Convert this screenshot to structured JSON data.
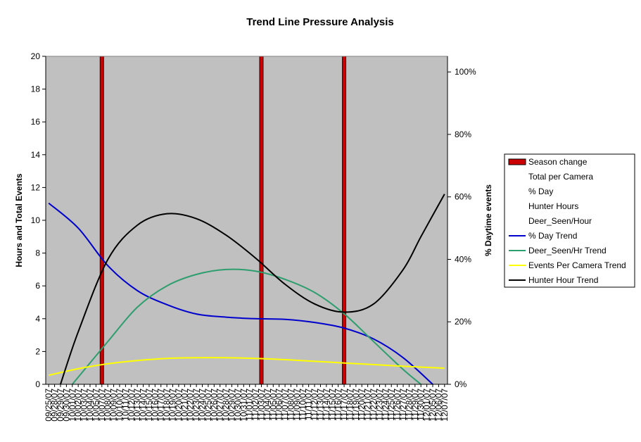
{
  "chart_data": {
    "type": "line",
    "title": "Trend Line Pressure Analysis",
    "ylabel": "Hours and Total Events",
    "y2label": "% Daytime events",
    "ylim": [
      0,
      20
    ],
    "y2lim": [
      0,
      1.05
    ],
    "yticks": [
      "0",
      "2",
      "4",
      "6",
      "8",
      "10",
      "12",
      "14",
      "16",
      "18",
      "20"
    ],
    "y2ticks": [
      "0%",
      "20%",
      "40%",
      "60%",
      "80%",
      "100%"
    ],
    "background": "#c0c0c0",
    "grid": false,
    "legend_position": "right",
    "x": [
      "09/25/07",
      "09/28/07",
      "09/29/07",
      "09/30/07",
      "10/01/07",
      "10/02/07",
      "10/03/07",
      "10/04/07",
      "10/05/07",
      "10/07/07",
      "10/08/07",
      "10/09/07",
      "10/10/07",
      "10/11/07",
      "10/12/07",
      "10/13/07",
      "10/14/07",
      "10/15/07",
      "10/16/07",
      "10/17/07",
      "10/18/07",
      "10/19/07",
      "10/20/07",
      "10/21/07",
      "10/22/07",
      "10/23/07",
      "10/24/07",
      "10/25/07",
      "10/26/07",
      "10/27/07",
      "10/28/07",
      "10/29/07",
      "10/30/07",
      "10/31/07",
      "11/01/07",
      "11/02/07",
      "11/03/07",
      "11/04/07",
      "11/05/07",
      "11/06/07",
      "11/07/07",
      "11/08/07",
      "11/09/07",
      "11/10/07",
      "11/11/07",
      "11/12/07",
      "11/13/07",
      "11/14/07",
      "11/15/07",
      "11/16/07",
      "11/17/07",
      "11/18/07",
      "11/19/07",
      "11/20/07",
      "11/21/07",
      "11/22/07",
      "11/23/07",
      "11/24/07",
      "11/25/07",
      "11/26/07",
      "11/27/07",
      "11/28/07",
      "11/29/07",
      "11/30/07",
      "12/01/07",
      "12/05/07",
      "12/06/07",
      "12/07/07"
    ],
    "season_changes": [
      9.5,
      36.5,
      50.5
    ],
    "series": [
      {
        "name": "Season change",
        "color": "#cc0000",
        "kind": "column"
      },
      {
        "name": "Total per Camera",
        "color": "none",
        "kind": "hidden"
      },
      {
        "name": "% Day",
        "color": "none",
        "kind": "hidden"
      },
      {
        "name": "Hunter Hours",
        "color": "none",
        "kind": "hidden"
      },
      {
        "name": "Deer_Seen/Hour",
        "color": "none",
        "kind": "hidden"
      },
      {
        "name": "% Day Trend",
        "color": "#0000cc",
        "axis": "secondary",
        "points": [
          [
            0,
            0.58
          ],
          [
            5,
            0.5
          ],
          [
            10,
            0.38
          ],
          [
            15,
            0.3
          ],
          [
            20,
            0.255
          ],
          [
            25,
            0.225
          ],
          [
            30,
            0.215
          ],
          [
            35,
            0.21
          ],
          [
            40,
            0.208
          ],
          [
            45,
            0.198
          ],
          [
            50,
            0.18
          ],
          [
            55,
            0.145
          ],
          [
            60,
            0.085
          ],
          [
            65,
            0.0
          ]
        ]
      },
      {
        "name": "Deer_Seen/Hr Trend",
        "color": "#2e9e6e",
        "axis": "primary",
        "points": [
          [
            4,
            0.0
          ],
          [
            10,
            2.6
          ],
          [
            15,
            4.7
          ],
          [
            20,
            6.0
          ],
          [
            25,
            6.7
          ],
          [
            30,
            7.0
          ],
          [
            35,
            6.9
          ],
          [
            40,
            6.4
          ],
          [
            45,
            5.6
          ],
          [
            50,
            4.3
          ],
          [
            55,
            2.6
          ],
          [
            60,
            0.9
          ],
          [
            63,
            0.0
          ]
        ]
      },
      {
        "name": "Events Per Camera Trend",
        "color": "#ffff00",
        "axis": "primary",
        "points": [
          [
            0,
            0.55
          ],
          [
            5,
            0.95
          ],
          [
            10,
            1.25
          ],
          [
            15,
            1.45
          ],
          [
            20,
            1.58
          ],
          [
            25,
            1.62
          ],
          [
            30,
            1.62
          ],
          [
            35,
            1.58
          ],
          [
            40,
            1.5
          ],
          [
            45,
            1.4
          ],
          [
            50,
            1.3
          ],
          [
            55,
            1.2
          ],
          [
            60,
            1.1
          ],
          [
            67,
            0.98
          ]
        ]
      },
      {
        "name": "Hunter Hour Trend",
        "color": "#000000",
        "axis": "primary",
        "points": [
          [
            2,
            0.0
          ],
          [
            5,
            3.2
          ],
          [
            10,
            7.6
          ],
          [
            15,
            9.7
          ],
          [
            20,
            10.4
          ],
          [
            25,
            10.1
          ],
          [
            30,
            9.1
          ],
          [
            35,
            7.7
          ],
          [
            40,
            6.1
          ],
          [
            45,
            4.9
          ],
          [
            50,
            4.4
          ],
          [
            55,
            4.9
          ],
          [
            60,
            7.0
          ],
          [
            63,
            9.0
          ],
          [
            67,
            11.6
          ]
        ]
      }
    ]
  }
}
